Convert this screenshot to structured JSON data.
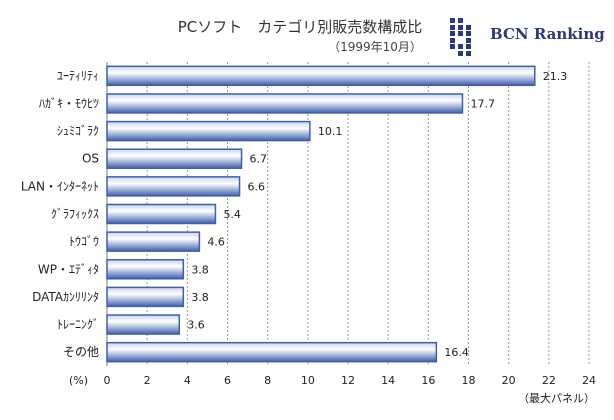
{
  "chart_data": {
    "type": "bar",
    "orientation": "horizontal",
    "title": "PCソフト　カテゴリ別販売数構成比",
    "subtitle": "（1999年10月）",
    "categories": [
      "ﾕｰﾃｨﾘﾃｨ",
      "ﾊｶﾞｷ・ﾓｳﾋﾂ",
      "ｼｭﾐｺﾞﾗｸ",
      "OS",
      "LAN・ｲﾝﾀｰﾈｯﾄ",
      "ｸﾞﾗﾌｨｯｸｽ",
      "ﾄｳｺﾞｳ",
      "WP・ｴﾃﾞｨﾀ",
      "DATAｶﾝﾘﾘﾝﾀ",
      "ﾄﾚｰﾆﾝｸﾞ",
      "その他"
    ],
    "values": [
      21.3,
      17.7,
      10.1,
      6.7,
      6.6,
      5.4,
      4.6,
      3.8,
      3.8,
      3.6,
      16.4
    ],
    "data_labels": [
      "21.3",
      "17.7",
      "10.1",
      "6.7",
      "6.6",
      "5.4",
      "4.6",
      "3.8",
      "3.8",
      "3.6",
      "16.4"
    ],
    "xlim": [
      0,
      24
    ],
    "xticks": [
      "0",
      "2",
      "4",
      "6",
      "8",
      "10",
      "12",
      "14",
      "16",
      "18",
      "20",
      "22",
      "24"
    ],
    "xunit": "(%)",
    "footnote": "（最大パネル）",
    "grid": true,
    "bar_color": "#3f5fae"
  },
  "logo": {
    "text": "BCN Ranking",
    "color": "#2a3a7c"
  }
}
